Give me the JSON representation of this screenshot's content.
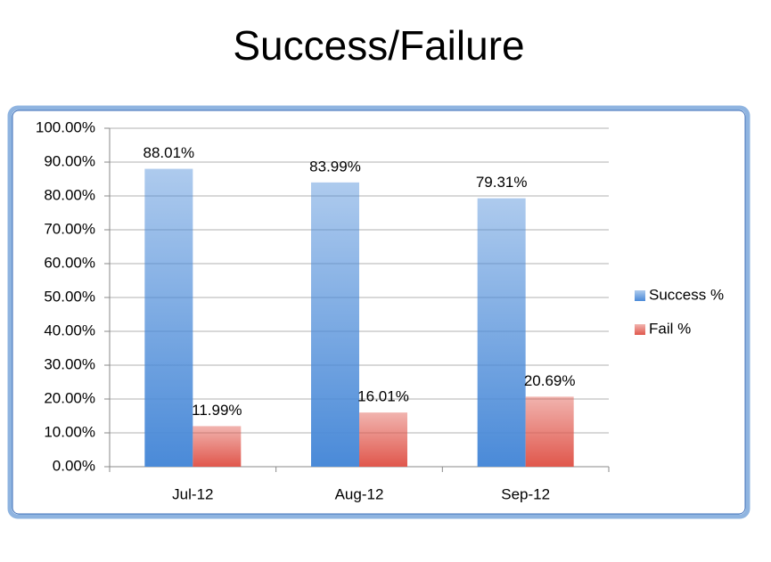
{
  "chart_data": {
    "type": "bar",
    "title": "Success/Failure",
    "categories": [
      "Jul-12",
      "Aug-12",
      "Sep-12"
    ],
    "series": [
      {
        "name": "Success %",
        "color": "#4a8ad8",
        "values": [
          88.01,
          83.99,
          79.31
        ],
        "value_labels": [
          "88.01%",
          "83.99%",
          "79.31%"
        ]
      },
      {
        "name": "Fail %",
        "color": "#e0574c",
        "values": [
          11.99,
          16.01,
          20.69
        ],
        "value_labels": [
          "11.99%",
          "16.01%",
          "20.69%"
        ]
      }
    ],
    "ylim": [
      0,
      100
    ],
    "yticks": [
      {
        "value": 0,
        "label": "0.00%"
      },
      {
        "value": 10,
        "label": "10.00%"
      },
      {
        "value": 20,
        "label": "20.00%"
      },
      {
        "value": 30,
        "label": "30.00%"
      },
      {
        "value": 40,
        "label": "40.00%"
      },
      {
        "value": 50,
        "label": "50.00%"
      },
      {
        "value": 60,
        "label": "60.00%"
      },
      {
        "value": 70,
        "label": "70.00%"
      },
      {
        "value": 80,
        "label": "80.00%"
      },
      {
        "value": 90,
        "label": "90.00%"
      },
      {
        "value": 100,
        "label": "100.00%"
      }
    ],
    "grid": true,
    "legend": "right"
  }
}
